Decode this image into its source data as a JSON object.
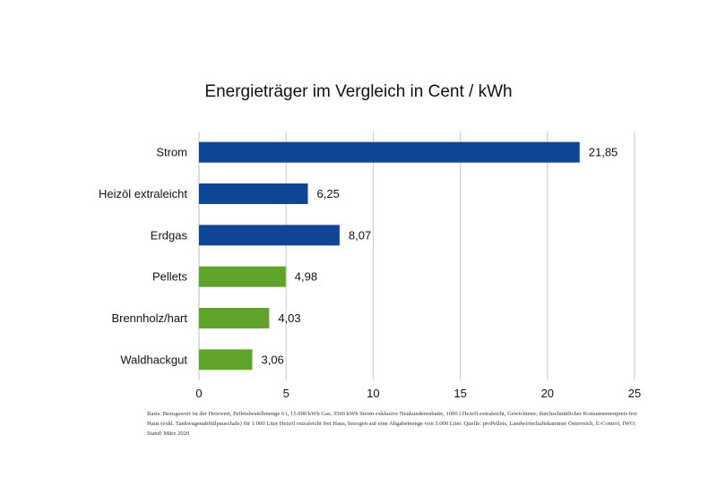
{
  "chart_data": {
    "type": "bar",
    "orientation": "horizontal",
    "title": "Energieträger im Vergleich in Cent / kWh",
    "categories": [
      "Strom",
      "Heizöl extraleicht",
      "Erdgas",
      "Pellets",
      "Brennholz/hart",
      "Waldhackgut"
    ],
    "values": [
      21.85,
      6.25,
      8.07,
      4.98,
      4.03,
      3.06
    ],
    "value_labels": [
      "21,85",
      "6,25",
      "8,07",
      "4,98",
      "4,03",
      "3,06"
    ],
    "bar_colors": [
      "#0f4595",
      "#0f4595",
      "#0f4595",
      "#5fa32a",
      "#5fa32a",
      "#5fa32a"
    ],
    "xlim": [
      0,
      25
    ],
    "xticks": [
      0,
      5,
      10,
      15,
      20,
      25
    ],
    "grid": "vertical",
    "legend": "none"
  },
  "footnote": "Basis: Bezugswert ist der Heizwert, Pelletsbestellmenge 6 t, 15.000 kWh Gas, 3500 kWh Strom exklusive Neukundenrabatte, 1000 l Heizöl extraleicht, Gewichteter, durchschnittlicher Konsumentenpreis frei Haus (exkl. Tankwagenabfüllpauschale) für 1.000 Liter Heizöl extraleicht frei Haus, bezogen auf eine Abgabemenge von 3.000 Liter. Quelle: proPellets, Landwirtschaftskammer Österreich, E-Control, IWO; Stand: März 2020"
}
